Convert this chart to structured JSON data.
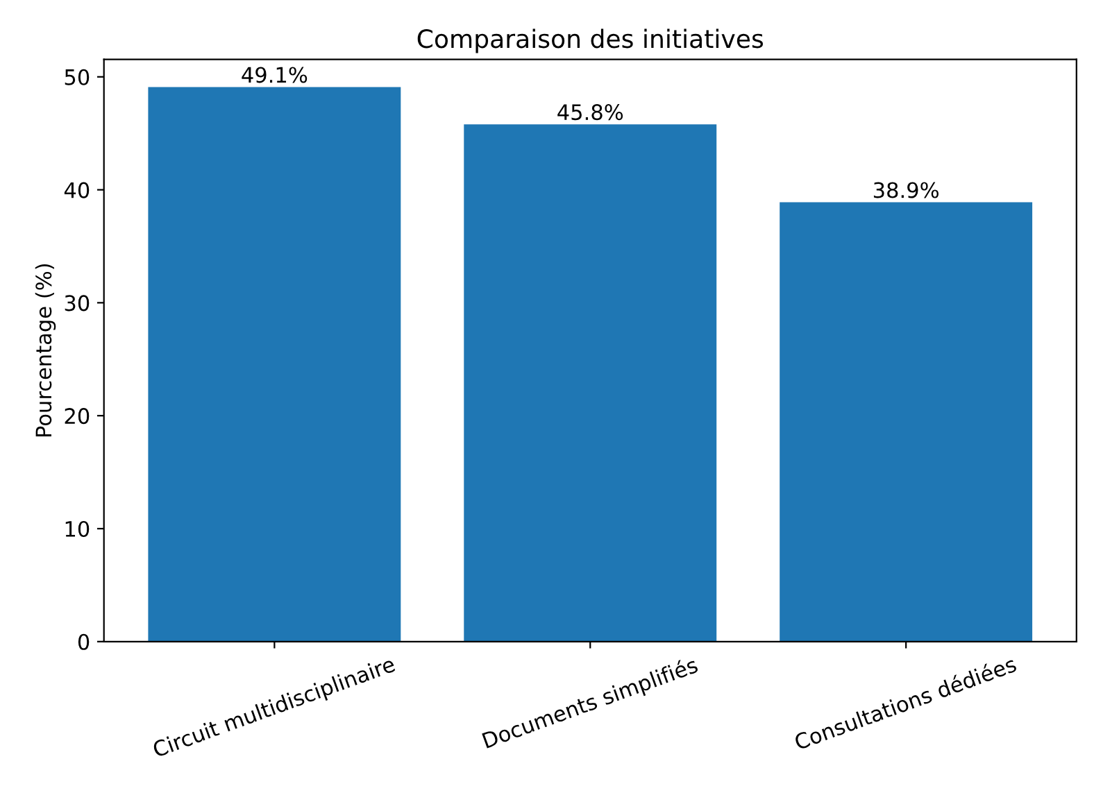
{
  "chart_data": {
    "type": "bar",
    "title": "Comparaison des initiatives",
    "ylabel": "Pourcentage (%)",
    "categories": [
      "Circuit multidisciplinaire",
      "Documents simplifiés",
      "Consultations dédiées"
    ],
    "values": [
      49.1,
      45.8,
      38.9
    ],
    "value_labels": [
      "49.1%",
      "45.8%",
      "38.9%"
    ],
    "color": "#1f77b4",
    "ylim": [
      0,
      51.55
    ],
    "yticks": [
      0,
      10,
      20,
      30,
      40,
      50
    ],
    "grid": false,
    "legend": false
  }
}
